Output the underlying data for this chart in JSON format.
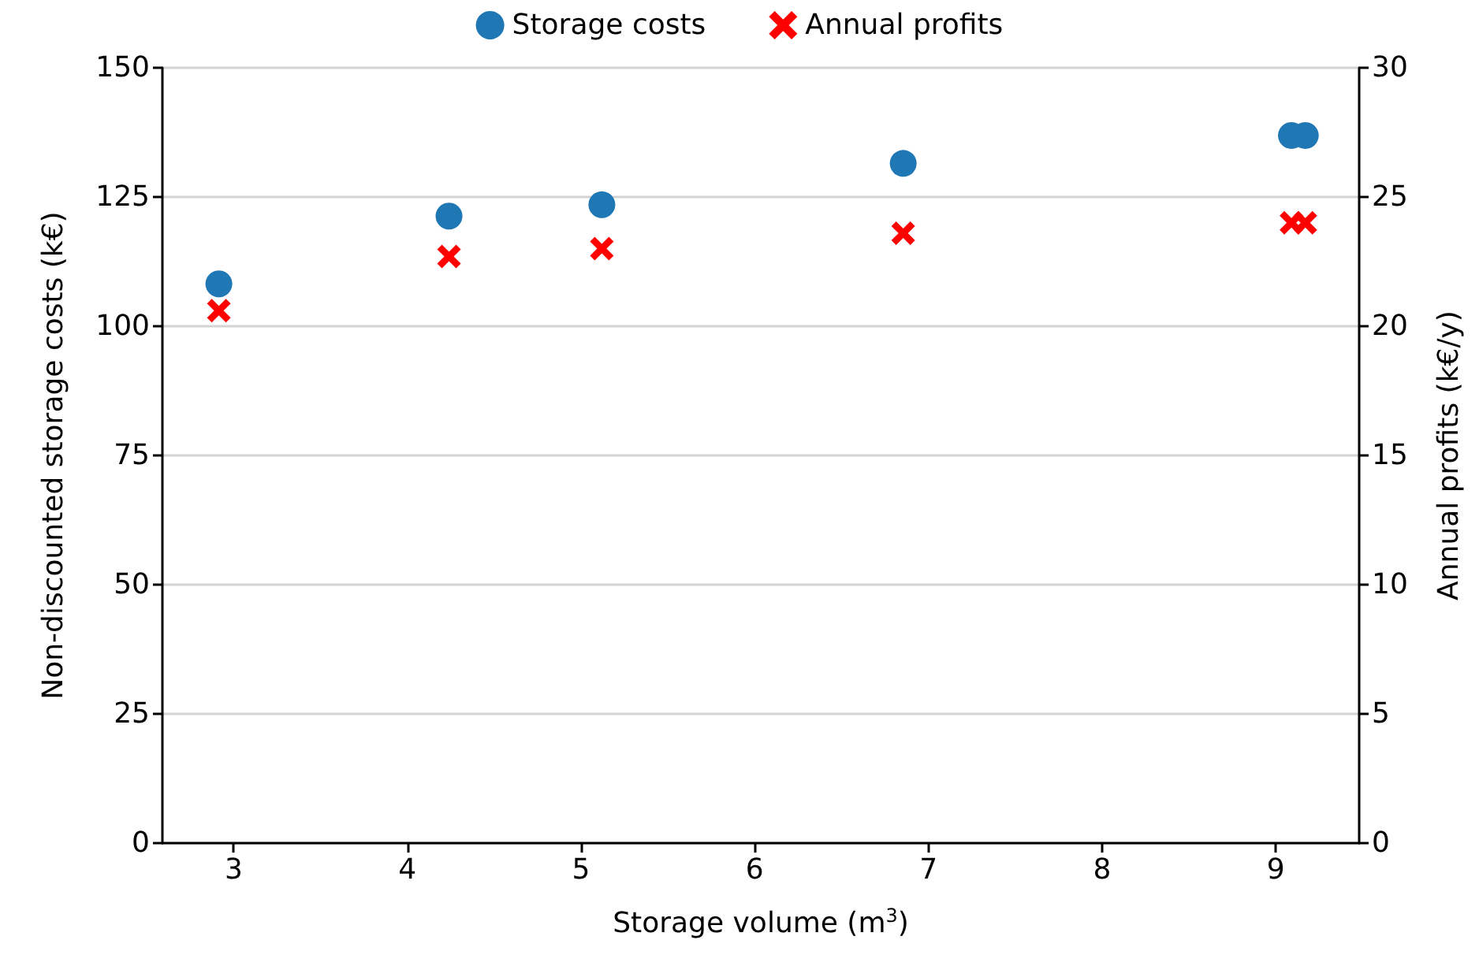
{
  "chart_data": {
    "type": "scatter",
    "xlabel": "Storage volume (m$^{3}$)",
    "ylabel": "Non-discounted storage costs (k€)",
    "y2label": "Annual profits (k€/y)",
    "xlim": [
      2.59,
      9.48
    ],
    "xticks": [
      3,
      4,
      5,
      6,
      7,
      8,
      9
    ],
    "ylim": [
      0,
      150
    ],
    "yticks": [
      0,
      25,
      50,
      75,
      100,
      125,
      150
    ],
    "y2lim": [
      0,
      30
    ],
    "y2ticks": [
      0,
      5,
      10,
      15,
      20,
      25,
      30
    ],
    "grid": "y",
    "legend": "top",
    "series": [
      {
        "name": "Storage costs",
        "color": "#1f77b4",
        "marker": "circle",
        "x": [
          2.915,
          4.24,
          5.12,
          6.855,
          9.09,
          9.17
        ],
        "values": [
          108.2,
          121.3,
          123.5,
          131.5,
          136.9,
          136.9
        ]
      },
      {
        "name": "Annual profits",
        "color": "#ff0000",
        "marker": "cross",
        "axis": "y2",
        "x": [
          2.915,
          4.24,
          5.12,
          6.855,
          9.09,
          9.17
        ],
        "values": [
          20.6,
          22.7,
          23.0,
          23.6,
          24.0,
          24.0
        ]
      }
    ]
  }
}
